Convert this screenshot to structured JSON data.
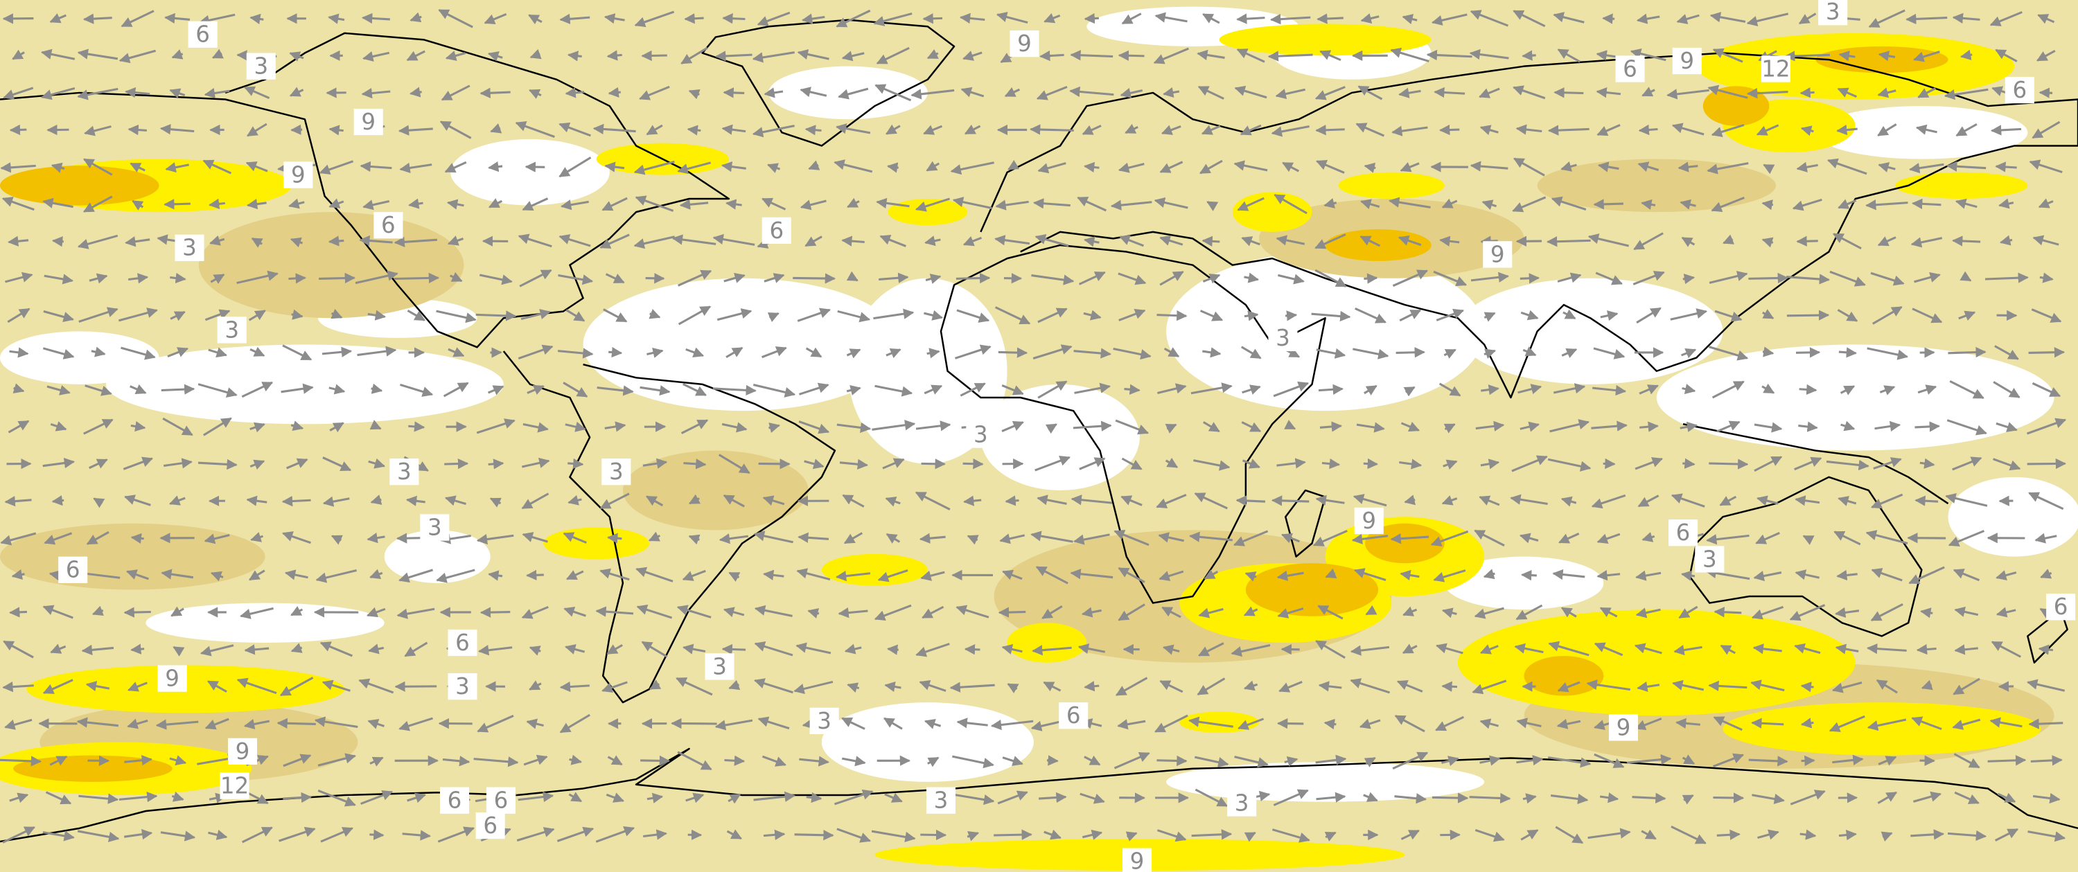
{
  "contour_labels": [
    6,
    3,
    9,
    3,
    6,
    9,
    12,
    6,
    9,
    9,
    6,
    6,
    3,
    9,
    3,
    3,
    3,
    3,
    3,
    3,
    9,
    6,
    3,
    6,
    6,
    6,
    9,
    3,
    3,
    3,
    6,
    9,
    9,
    12,
    6,
    6,
    3,
    3,
    6,
    9
  ]
}
